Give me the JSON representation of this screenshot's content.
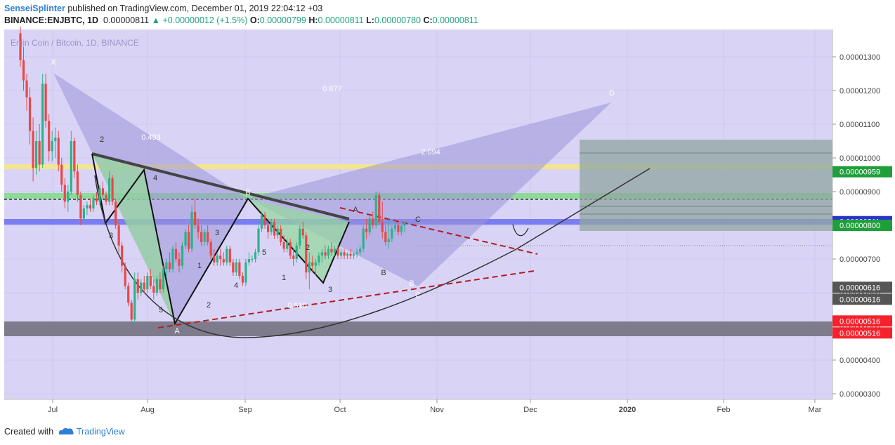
{
  "header": {
    "author": "SenseiSplinter",
    "published": "published on TradingView.com, December 01, 2019 22:04:12 +03",
    "symbol": "BINANCE:ENJBTC, 1D",
    "last": "0.00000811",
    "change": "+0.00000012 (+1.5%)",
    "o_label": "O:",
    "o": "0.00000799",
    "h_label": "H:",
    "h": "0.00000811",
    "l_label": "L:",
    "l": "0.00000780",
    "c_label": "C:",
    "c": "0.00000811"
  },
  "watermark": "Enjin Coin / Bitcoin, 1D, BINANCE",
  "footer": {
    "created_with": "Created with",
    "brand": "TradingView"
  },
  "colors": {
    "plot_bg": "#d9d4f6",
    "up": "#2bb389",
    "down": "#e8484a",
    "green_badge": "#1f9f3b",
    "blue_badge": "#2b35c8",
    "red_badge": "#f5222d",
    "gray_badge": "#555555",
    "author_link": "#2d7fd7"
  },
  "chart_data": {
    "type": "candlestick",
    "x_ticks": [
      "Jul",
      "Aug",
      "Sep",
      "Oct",
      "Nov",
      "Dec",
      "2020",
      "Feb",
      "Mar"
    ],
    "y_ticks": [
      "0.00000300",
      "0.00000400",
      "0.00000500",
      "0.00000600",
      "0.00000700",
      "0.00000800",
      "0.00000900",
      "0.00001000",
      "0.00001100",
      "0.00001200",
      "0.00001300"
    ],
    "y_range": [
      2.7e-06,
      1.38e-05
    ],
    "price_badges": [
      {
        "value": 9.59e-06,
        "label": "0.00000959",
        "color": "green"
      },
      {
        "value": 8.11e-06,
        "label": "0.00000811",
        "color": "blue"
      },
      {
        "value": 8e-06,
        "label": "0.00000800",
        "color": "green"
      },
      {
        "value": 6.16e-06,
        "label": "0.00000616",
        "color": "gray"
      },
      {
        "value": 6.16e-06,
        "label": "0.00000616",
        "color": "gray"
      },
      {
        "value": 5.16e-06,
        "label": "0.00000516",
        "color": "red"
      },
      {
        "value": 5.16e-06,
        "label": "0.00000516",
        "color": "red"
      }
    ],
    "pattern_points": [
      {
        "label": "X",
        "date": "2019-07-01",
        "price": 1.25e-05
      },
      {
        "label": "A",
        "date": "2019-08-09",
        "price": 5.1e-06
      },
      {
        "label": "B",
        "date": "2019-09-01",
        "price": 8.8e-06
      },
      {
        "label": "C",
        "date": "2019-10-21",
        "price": 6.1e-06
      },
      {
        "label": "D",
        "date": "2019-12-11",
        "price": 1.19e-05
      }
    ],
    "fib_ratios": [
      "0.493",
      "0.877",
      "2.094",
      "0.510"
    ],
    "wave_labels": [
      "2",
      "3",
      "4",
      "5",
      "1",
      "2",
      "3",
      "4",
      "5",
      "1",
      "2",
      "3",
      "4",
      "5"
    ],
    "abc_labels": [
      "A",
      "B",
      "C",
      "A",
      "B",
      "C"
    ],
    "candles": [
      [
        1.37e-05,
        1.39e-05,
        1.27e-05,
        1.29e-05
      ],
      [
        1.29e-05,
        1.33e-05,
        1.2e-05,
        1.23e-05
      ],
      [
        1.23e-05,
        1.25e-05,
        1.14e-05,
        1.18e-05
      ],
      [
        1.18e-05,
        1.21e-05,
        1.04e-05,
        1.08e-05
      ],
      [
        1.08e-05,
        1.12e-05,
        9.3e-06,
        9.7e-06
      ],
      [
        9.7e-06,
        1.08e-05,
        9.5e-06,
        1.05e-05
      ],
      [
        1.05e-05,
        1.1e-05,
        9.6e-06,
        9.8e-06
      ],
      [
        9.8e-06,
        1.25e-05,
        9.7e-06,
        1.22e-05
      ],
      [
        1.22e-05,
        1.25e-05,
        1.09e-05,
        1.11e-05
      ],
      [
        1.11e-05,
        1.13e-05,
        9.9e-06,
        1.02e-05
      ],
      [
        1.02e-05,
        1.08e-05,
        9.9e-06,
        1.05e-05
      ],
      [
        1.05e-05,
        1.09e-05,
        1e-05,
        1.06e-05
      ],
      [
        1.06e-05,
        1.08e-05,
        9.6e-06,
        9.8e-06
      ],
      [
        9.8e-06,
        1e-05,
        9e-06,
        9.2e-06
      ],
      [
        9.2e-06,
        9.4e-06,
        8.5e-06,
        8.7e-06
      ],
      [
        8.7e-06,
        9.2e-06,
        8.4e-06,
        9e-06
      ],
      [
        9e-06,
        1.08e-05,
        8.9e-06,
        1.05e-05
      ],
      [
        1.05e-05,
        1.06e-05,
        9.4e-06,
        9.6e-06
      ],
      [
        9.6e-06,
        9.8e-06,
        8.7e-06,
        8.9e-06
      ],
      [
        8.9e-06,
        9e-06,
        8e-06,
        8.2e-06
      ],
      [
        8.2e-06,
        8.6e-06,
        8.1e-06,
        8.5e-06
      ],
      [
        8.5e-06,
        8.7e-06,
        8.3e-06,
        8.6e-06
      ],
      [
        8.6e-06,
        8.8e-06,
        8.4e-06,
        8.5e-06
      ],
      [
        8.5e-06,
        8.9e-06,
        8.4e-06,
        8.8e-06
      ],
      [
        8.8e-06,
        9e-06,
        8.6e-06,
        8.7e-06
      ],
      [
        8.7e-06,
        9.2e-06,
        8.6e-06,
        9.1e-06
      ],
      [
        9.1e-06,
        9.3e-06,
        8.8e-06,
        8.9e-06
      ],
      [
        8.9e-06,
        9e-06,
        8.6e-06,
        8.7e-06
      ],
      [
        8.7e-06,
        9.6e-06,
        8.6e-06,
        9.4e-06
      ],
      [
        9.4e-06,
        9.5e-06,
        8.6e-06,
        8.7e-06
      ],
      [
        8.7e-06,
        8.8e-06,
        7.9e-06,
        8e-06
      ],
      [
        8e-06,
        8.1e-06,
        7.2e-06,
        7.4e-06
      ],
      [
        7.4e-06,
        7.5e-06,
        6.6e-06,
        6.8e-06
      ],
      [
        6.8e-06,
        6.9e-06,
        6.1e-06,
        6.2e-06
      ],
      [
        6.2e-06,
        6.3e-06,
        5.6e-06,
        5.7e-06
      ],
      [
        5.7e-06,
        5.8e-06,
        5.1e-06,
        5.2e-06
      ],
      [
        5.2e-06,
        6.6e-06,
        5.1e-06,
        6.4e-06
      ],
      [
        6.4e-06,
        6.6e-06,
        5.8e-06,
        6e-06
      ],
      [
        6e-06,
        6.4e-06,
        5.9e-06,
        6.3e-06
      ],
      [
        6.3e-06,
        6.5e-06,
        6e-06,
        6.1e-06
      ],
      [
        6.1e-06,
        6.6e-06,
        6e-06,
        6.5e-06
      ],
      [
        6.5e-06,
        6.7e-06,
        6.1e-06,
        6.2e-06
      ],
      [
        6.2e-06,
        6.4e-06,
        5.8e-06,
        6e-06
      ],
      [
        6e-06,
        6.5e-06,
        5.9e-06,
        6.4e-06
      ],
      [
        6.4e-06,
        6.6e-06,
        6e-06,
        6.1e-06
      ],
      [
        6.1e-06,
        6.8e-06,
        6e-06,
        6.7e-06
      ],
      [
        6.7e-06,
        7e-06,
        6.5e-06,
        6.9e-06
      ],
      [
        6.9e-06,
        7.2e-06,
        6.6e-06,
        6.7e-06
      ],
      [
        6.7e-06,
        7.4e-06,
        6.6e-06,
        7.3e-06
      ],
      [
        7.3e-06,
        7.5e-06,
        6.9e-06,
        7e-06
      ],
      [
        7e-06,
        7.2e-06,
        6.6e-06,
        6.8e-06
      ],
      [
        6.8e-06,
        7.5e-06,
        6.7e-06,
        7.4e-06
      ],
      [
        7.4e-06,
        7.9e-06,
        7.3e-06,
        7.8e-06
      ],
      [
        7.8e-06,
        8e-06,
        7.2e-06,
        7.3e-06
      ],
      [
        7.3e-06,
        8.6e-06,
        7.2e-06,
        8.4e-06
      ],
      [
        8.4e-06,
        8.8e-06,
        7.9e-06,
        8e-06
      ],
      [
        8e-06,
        8.2e-06,
        7.6e-06,
        7.8e-06
      ],
      [
        7.8e-06,
        8e-06,
        7.4e-06,
        7.5e-06
      ],
      [
        7.5e-06,
        7.9e-06,
        7.4e-06,
        7.8e-06
      ],
      [
        7.8e-06,
        8e-06,
        7.4e-06,
        7.5e-06
      ],
      [
        7.5e-06,
        7.6e-06,
        7e-06,
        7.1e-06
      ],
      [
        7.1e-06,
        7.3e-06,
        6.8e-06,
        6.9e-06
      ],
      [
        6.9e-06,
        7.2e-06,
        6.8e-06,
        7.1e-06
      ],
      [
        7.1e-06,
        7.3e-06,
        6.8e-06,
        7e-06
      ],
      [
        7e-06,
        7.2e-06,
        6.8e-06,
        6.9e-06
      ],
      [
        6.9e-06,
        7.4e-06,
        6.8e-06,
        7.3e-06
      ],
      [
        7.3e-06,
        7.4e-06,
        6.8e-06,
        6.9e-06
      ],
      [
        6.9e-06,
        7e-06,
        6.5e-06,
        6.6e-06
      ],
      [
        6.6e-06,
        7e-06,
        6.5e-06,
        6.9e-06
      ],
      [
        6.9e-06,
        7e-06,
        6.4e-06,
        6.5e-06
      ],
      [
        6.5e-06,
        6.6e-06,
        6.2e-06,
        6.3e-06
      ],
      [
        6.3e-06,
        7e-06,
        6.2e-06,
        6.9e-06
      ],
      [
        6.9e-06,
        7.2e-06,
        6.8e-06,
        7e-06
      ],
      [
        7e-06,
        7.1e-06,
        6.9e-06,
        7e-06
      ],
      [
        7e-06,
        7.3e-06,
        6.9e-06,
        7.2e-06
      ],
      [
        7.2e-06,
        8e-06,
        7.1e-06,
        7.9e-06
      ],
      [
        7.9e-06,
        8.4e-06,
        7.8e-06,
        8.3e-06
      ],
      [
        8.3e-06,
        8.4e-06,
        7.9e-06,
        8e-06
      ],
      [
        8e-06,
        8.2e-06,
        7.6e-06,
        7.8e-06
      ],
      [
        7.8e-06,
        8.2e-06,
        7.7e-06,
        8.1e-06
      ],
      [
        8.1e-06,
        8.2e-06,
        7.6e-06,
        7.7e-06
      ],
      [
        7.7e-06,
        8e-06,
        7.6e-06,
        7.9e-06
      ],
      [
        7.9e-06,
        8e-06,
        7.4e-06,
        7.5e-06
      ],
      [
        7.5e-06,
        7.7e-06,
        7.2e-06,
        7.3e-06
      ],
      [
        7.3e-06,
        7.6e-06,
        7.2e-06,
        7.5e-06
      ],
      [
        7.5e-06,
        7.6e-06,
        7e-06,
        7.1e-06
      ],
      [
        7.1e-06,
        7.3e-06,
        6.8e-06,
        7e-06
      ],
      [
        7e-06,
        7.5e-06,
        6.9e-06,
        7.4e-06
      ],
      [
        7.4e-06,
        8e-06,
        7.3e-06,
        7.9e-06
      ],
      [
        7.9e-06,
        8.1e-06,
        7.6e-06,
        7.7e-06
      ],
      [
        7.7e-06,
        7.8e-06,
        6.4e-06,
        6.6e-06
      ],
      [
        6.6e-06,
        7.2e-06,
        6.1e-06,
        6.9e-06
      ],
      [
        6.9e-06,
        7.1e-06,
        6.6e-06,
        6.8e-06
      ],
      [
        6.8e-06,
        7e-06,
        6.5e-06,
        6.9e-06
      ],
      [
        6.9e-06,
        7.2e-06,
        6.8e-06,
        7.1e-06
      ],
      [
        7.1e-06,
        7.3e-06,
        6.9e-06,
        7.2e-06
      ],
      [
        7.2e-06,
        7.4e-06,
        7e-06,
        7.1e-06
      ],
      [
        7.1e-06,
        7.4e-06,
        7e-06,
        7.3e-06
      ],
      [
        7.3e-06,
        7.5e-06,
        7.1e-06,
        7.2e-06
      ],
      [
        7.2e-06,
        7.4e-06,
        7.1e-06,
        7.3e-06
      ],
      [
        7.3e-06,
        7.4e-06,
        7e-06,
        7.1e-06
      ],
      [
        7.1e-06,
        7.3e-06,
        7e-06,
        7.2e-06
      ],
      [
        7.2e-06,
        7.3e-06,
        7e-06,
        7.1e-06
      ],
      [
        7.1e-06,
        7.2e-06,
        7e-06,
        7.15e-06
      ],
      [
        7.15e-06,
        7.3e-06,
        7e-06,
        7.1e-06
      ],
      [
        7.1e-06,
        7.2e-06,
        7e-06,
        7.15e-06
      ],
      [
        7.15e-06,
        7.3e-06,
        7.05e-06,
        7.2e-06
      ],
      [
        7.2e-06,
        7.4e-06,
        7.1e-06,
        7.3e-06
      ],
      [
        7.3e-06,
        8e-06,
        7.2e-06,
        7.9e-06
      ],
      [
        7.9e-06,
        8.2e-06,
        7.6e-06,
        7.8e-06
      ],
      [
        7.8e-06,
        8.3e-06,
        7.7e-06,
        8.2e-06
      ],
      [
        8.2e-06,
        8.4e-06,
        7.9e-06,
        8e-06
      ],
      [
        8e-06,
        9e-06,
        7.9e-06,
        8.9e-06
      ],
      [
        8.9e-06,
        9e-06,
        8e-06,
        8.1e-06
      ],
      [
        8.1e-06,
        8.7e-06,
        7.6e-06,
        7.8e-06
      ],
      [
        7.8e-06,
        8e-06,
        7.4e-06,
        7.5e-06
      ],
      [
        7.5e-06,
        8.2e-06,
        7.3e-06,
        7.6e-06
      ],
      [
        7.6e-06,
        8e-06,
        7.5e-06,
        7.9e-06
      ],
      [
        7.9e-06,
        8.2e-06,
        7.8e-06,
        8e-06
      ],
      [
        8e-06,
        8.1e-06,
        7.7e-06,
        7.8e-06
      ],
      [
        7.8e-06,
        8e-06,
        7.7e-06,
        7.99e-06
      ],
      [
        7.99e-06,
        8.11e-06,
        7.8e-06,
        8.11e-06
      ]
    ]
  }
}
